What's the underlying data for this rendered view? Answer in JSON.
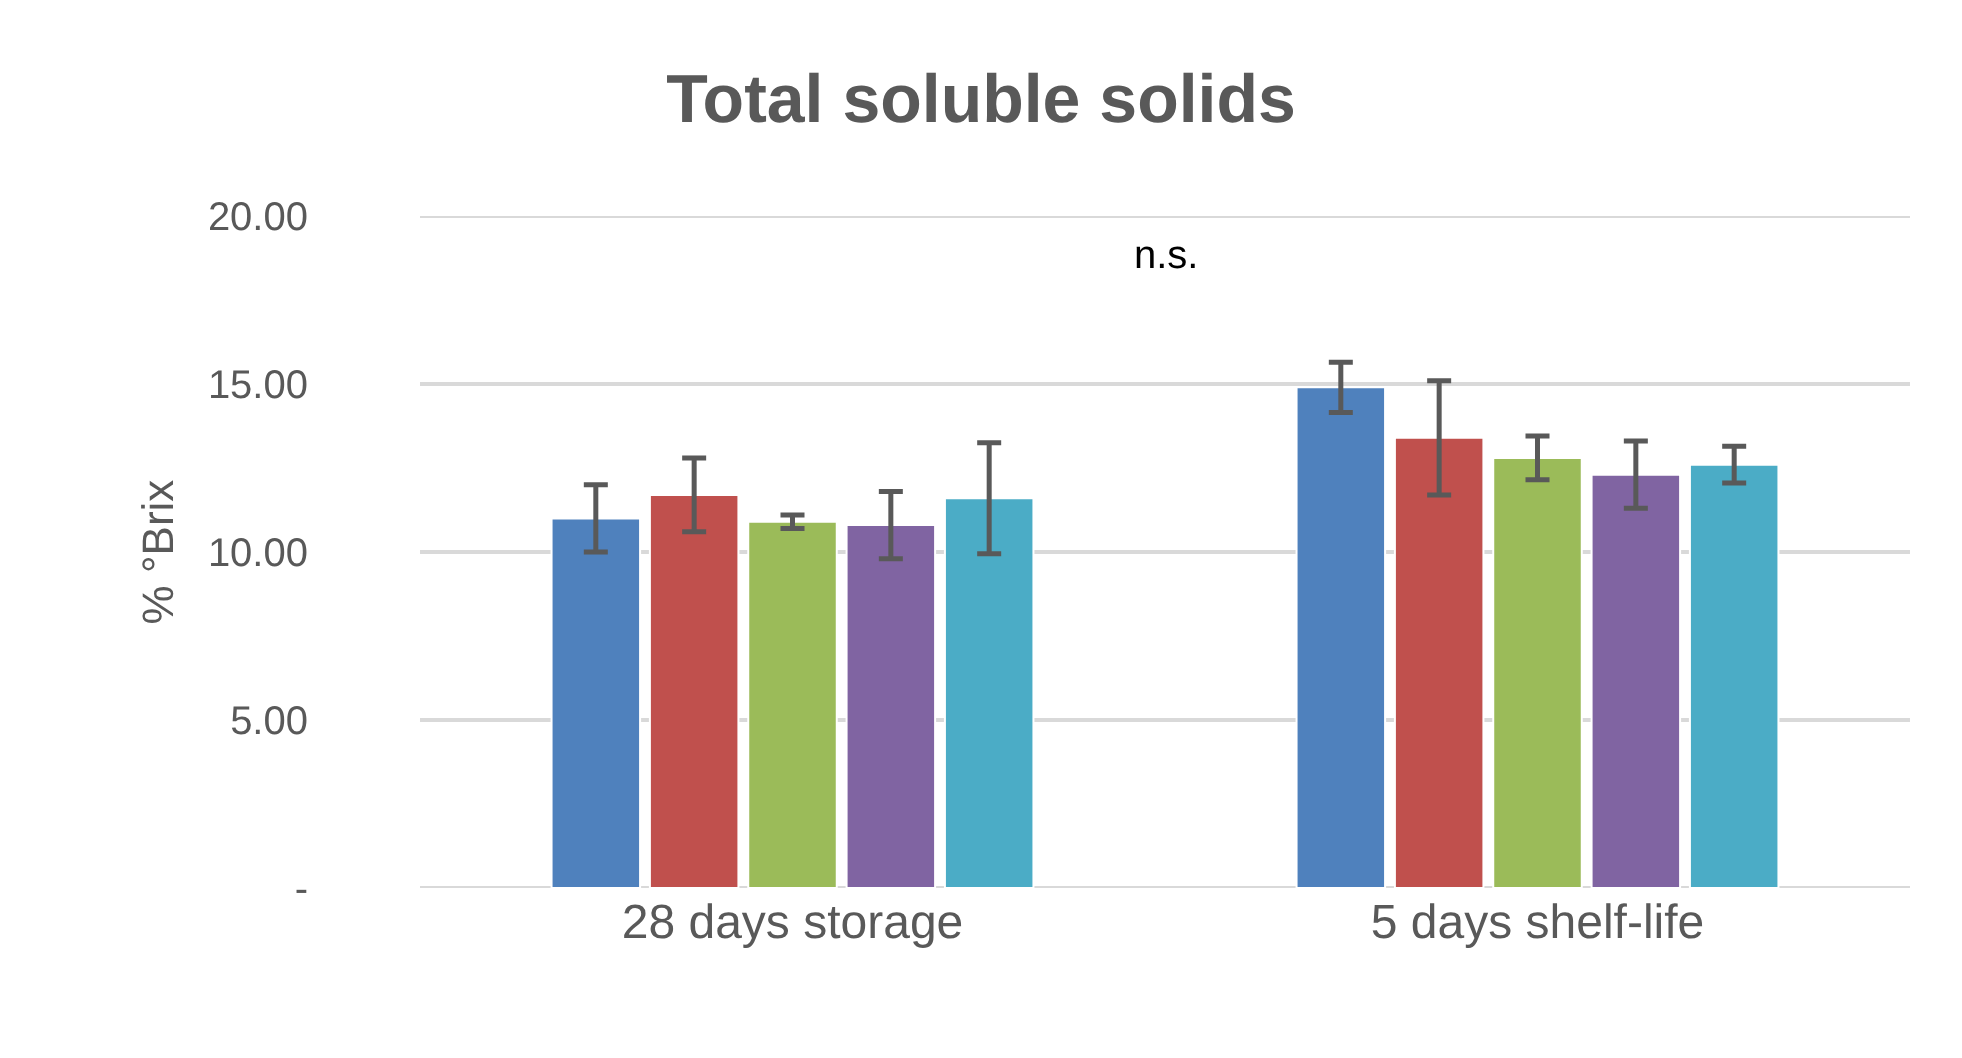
{
  "chart_data": {
    "type": "bar",
    "title": "Total soluble solids",
    "ylabel": "% °Brix",
    "categories": [
      "28 days storage",
      "5 days shelf-life"
    ],
    "series": [
      {
        "color": "#4f81bd",
        "values": [
          11.0,
          14.9
        ],
        "errors": [
          1.0,
          0.75
        ]
      },
      {
        "color": "#c0504d",
        "values": [
          11.7,
          13.4
        ],
        "errors": [
          1.1,
          1.7
        ]
      },
      {
        "color": "#9bbb59",
        "values": [
          10.9,
          12.8
        ],
        "errors": [
          0.2,
          0.65
        ]
      },
      {
        "color": "#8064a2",
        "values": [
          10.8,
          12.3
        ],
        "errors": [
          1.0,
          1.0
        ]
      },
      {
        "color": "#4bacc6",
        "values": [
          11.6,
          12.6
        ],
        "errors": [
          1.65,
          0.55
        ]
      }
    ],
    "ylim": [
      0,
      20
    ],
    "yticks": [
      {
        "value": 0,
        "label": "-"
      },
      {
        "value": 5,
        "label": "5.00"
      },
      {
        "value": 10,
        "label": "10.00"
      },
      {
        "value": 15,
        "label": "15.00"
      },
      {
        "value": 20,
        "label": "20.00"
      }
    ],
    "grid": "y",
    "annotations": [
      "n.s."
    ]
  }
}
